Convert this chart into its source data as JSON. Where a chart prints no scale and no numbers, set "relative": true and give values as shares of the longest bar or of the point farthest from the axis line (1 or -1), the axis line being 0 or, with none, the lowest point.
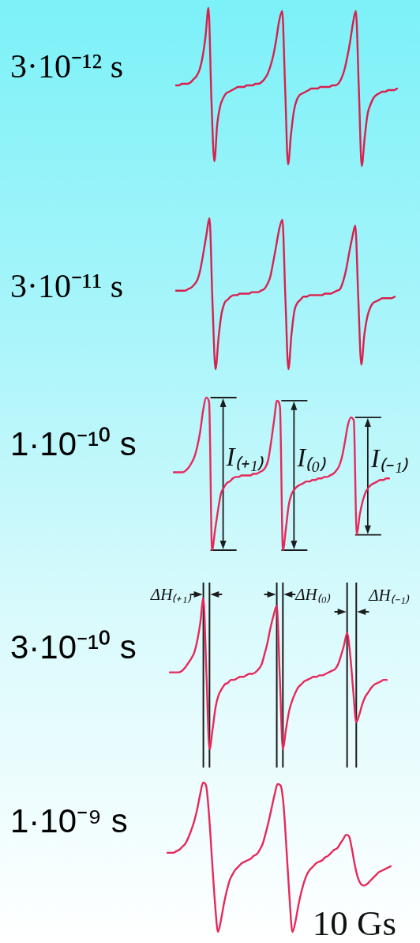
{
  "chart_data": [
    {
      "type": "line",
      "title": "3·10⁻¹² s",
      "relative": true,
      "color": "#d8204e",
      "categories": [
        null,
        null,
        null,
        null,
        null,
        null,
        null,
        null,
        null,
        null,
        null,
        null,
        null,
        null,
        null,
        null,
        null,
        null,
        null,
        null,
        null,
        null,
        null,
        null,
        null,
        null,
        null,
        null,
        null,
        null,
        null,
        null,
        null,
        null,
        null,
        null,
        null,
        null,
        null,
        null,
        null,
        null,
        null,
        null,
        null,
        null,
        null,
        null,
        null,
        null,
        null,
        null,
        null,
        null,
        null,
        null,
        null,
        null,
        null,
        null,
        null,
        null,
        null,
        null,
        null,
        null,
        null,
        null,
        null,
        null,
        null,
        null,
        null,
        null,
        null,
        null
      ],
      "values": [
        0.51,
        0.51,
        0.52,
        0.52,
        0.52,
        0.53,
        0.55,
        0.57,
        0.61,
        0.69,
        0.82,
        1,
        0.42,
        0.03,
        0.27,
        0.38,
        0.43,
        0.46,
        0.47,
        0.48,
        0.49,
        0.5,
        0.5,
        0.5,
        0.51,
        0.51,
        0.51,
        0.52,
        0.52,
        0.53,
        0.55,
        0.58,
        0.63,
        0.7,
        0.8,
        0.92,
        0.98,
        0.5,
        0.01,
        0.2,
        0.35,
        0.42,
        0.45,
        0.46,
        0.47,
        0.48,
        0.49,
        0.49,
        0.49,
        0.5,
        0.5,
        0.5,
        0.5,
        0.51,
        0.51,
        0.52,
        0.55,
        0.6,
        0.68,
        0.78,
        0.9,
        0.98,
        0.5,
        0,
        0.18,
        0.33,
        0.39,
        0.43,
        0.45,
        0.46,
        0.47,
        0.47,
        0.48,
        0.48,
        0.48,
        0.49
      ]
    },
    {
      "type": "line",
      "title": "3·10⁻¹¹ s",
      "relative": true,
      "color": "#d8204e",
      "categories": [
        null,
        null,
        null,
        null,
        null,
        null,
        null,
        null,
        null,
        null,
        null,
        null,
        null,
        null,
        null,
        null,
        null,
        null,
        null,
        null,
        null,
        null,
        null,
        null,
        null,
        null,
        null,
        null,
        null,
        null,
        null,
        null,
        null,
        null,
        null,
        null,
        null,
        null,
        null,
        null,
        null,
        null,
        null,
        null,
        null,
        null,
        null,
        null,
        null,
        null,
        null,
        null,
        null,
        null,
        null,
        null,
        null,
        null,
        null,
        null,
        null,
        null,
        null,
        null,
        null,
        null,
        null,
        null,
        null,
        null,
        null,
        null,
        null
      ],
      "values": [
        0.52,
        0.52,
        0.52,
        0.52,
        0.53,
        0.54,
        0.56,
        0.59,
        0.66,
        0.77,
        0.89,
        1,
        0.44,
        0,
        0.21,
        0.37,
        0.44,
        0.46,
        0.48,
        0.49,
        0.49,
        0.5,
        0.5,
        0.5,
        0.5,
        0.51,
        0.51,
        0.51,
        0.52,
        0.53,
        0.56,
        0.61,
        0.71,
        0.82,
        0.93,
        0.99,
        0.47,
        0,
        0.23,
        0.39,
        0.44,
        0.46,
        0.48,
        0.48,
        0.49,
        0.49,
        0.49,
        0.49,
        0.49,
        0.5,
        0.5,
        0.5,
        0.51,
        0.52,
        0.53,
        0.58,
        0.66,
        0.77,
        0.87,
        0.95,
        0.47,
        0.03,
        0.23,
        0.35,
        0.41,
        0.44,
        0.45,
        0.46,
        0.47,
        0.47,
        0.47,
        0.47,
        0.48
      ]
    },
    {
      "type": "line",
      "title": "1·10⁻¹⁰ s",
      "relative": true,
      "color": "#e6295a",
      "annotations": [
        "I₍₊₁₎",
        "I₍₀₎",
        "I₍₋₁₎"
      ],
      "categories": [
        null,
        null,
        null,
        null,
        null,
        null,
        null,
        null,
        null,
        null,
        null,
        null,
        null,
        null,
        null,
        null,
        null,
        null,
        null,
        null,
        null,
        null,
        null,
        null,
        null,
        null,
        null,
        null,
        null,
        null,
        null,
        null,
        null,
        null,
        null,
        null,
        null,
        null,
        null,
        null,
        null,
        null,
        null,
        null,
        null,
        null,
        null,
        null,
        null,
        null,
        null,
        null,
        null,
        null,
        null,
        null,
        null,
        null,
        null,
        null,
        null,
        null,
        null,
        null,
        null,
        null,
        null,
        null,
        null,
        null,
        null,
        null,
        null,
        null
      ],
      "values": [
        0.51,
        0.51,
        0.51,
        0.51,
        0.52,
        0.54,
        0.57,
        0.61,
        0.68,
        0.78,
        0.92,
        1,
        0.97,
        0,
        0.13,
        0.26,
        0.37,
        0.41,
        0.44,
        0.45,
        0.47,
        0.48,
        0.48,
        0.49,
        0.49,
        0.49,
        0.49,
        0.5,
        0.5,
        0.51,
        0.52,
        0.54,
        0.59,
        0.71,
        0.85,
        0.98,
        0.94,
        0,
        0.14,
        0.3,
        0.37,
        0.4,
        0.42,
        0.43,
        0.44,
        0.45,
        0.45,
        0.46,
        0.46,
        0.47,
        0.47,
        0.48,
        0.48,
        0.49,
        0.5,
        0.52,
        0.55,
        0.61,
        0.71,
        0.82,
        0.87,
        0.85,
        0.1,
        0.23,
        0.32,
        0.38,
        0.41,
        0.43,
        0.44,
        0.45,
        0.46,
        0.46,
        0.47,
        0.47
      ]
    },
    {
      "type": "line",
      "title": "3·10⁻¹⁰ s",
      "relative": true,
      "color": "#e6295a",
      "annotations": [
        "ΔH₍₊₁₎",
        "ΔH₍₀₎",
        "ΔH₍₋₁₎"
      ],
      "categories": [
        null,
        null,
        null,
        null,
        null,
        null,
        null,
        null,
        null,
        null,
        null,
        null,
        null,
        null,
        null,
        null,
        null,
        null,
        null,
        null,
        null,
        null,
        null,
        null,
        null,
        null,
        null,
        null,
        null,
        null,
        null,
        null,
        null,
        null,
        null,
        null,
        null,
        null,
        null,
        null,
        null,
        null,
        null,
        null,
        null,
        null,
        null,
        null,
        null,
        null,
        null,
        null,
        null,
        null,
        null,
        null,
        null,
        null,
        null,
        null,
        null,
        null,
        null,
        null,
        null,
        null,
        null,
        null,
        null,
        null,
        null,
        null
      ],
      "values": [
        0.51,
        0.51,
        0.51,
        0.51,
        0.52,
        0.54,
        0.57,
        0.6,
        0.64,
        0.72,
        0.84,
        1,
        0.5,
        0,
        0.13,
        0.28,
        0.36,
        0.4,
        0.43,
        0.44,
        0.46,
        0.46,
        0.47,
        0.48,
        0.48,
        0.49,
        0.5,
        0.5,
        0.51,
        0.53,
        0.56,
        0.63,
        0.71,
        0.81,
        0.89,
        0.95,
        0.48,
        0,
        0.13,
        0.25,
        0.32,
        0.37,
        0.41,
        0.43,
        0.45,
        0.46,
        0.47,
        0.48,
        0.48,
        0.49,
        0.49,
        0.5,
        0.51,
        0.52,
        0.53,
        0.56,
        0.62,
        0.69,
        0.77,
        0.63,
        0.39,
        0.18,
        0.23,
        0.3,
        0.35,
        0.38,
        0.41,
        0.43,
        0.44,
        0.45,
        0.46,
        0.46
      ]
    },
    {
      "type": "line",
      "title": "1·10⁻⁹ s",
      "relative": true,
      "color": "#e6295a",
      "annotations": [
        "10 Gs"
      ],
      "categories": [
        null,
        null,
        null,
        null,
        null,
        null,
        null,
        null,
        null,
        null,
        null,
        null,
        null,
        null,
        null,
        null,
        null,
        null,
        null,
        null,
        null,
        null,
        null,
        null,
        null,
        null,
        null,
        null,
        null,
        null,
        null,
        null,
        null,
        null,
        null,
        null,
        null,
        null,
        null,
        null,
        null,
        null,
        null,
        null,
        null,
        null,
        null,
        null,
        null,
        null,
        null,
        null,
        null,
        null,
        null,
        null,
        null,
        null,
        null,
        null,
        null,
        null,
        null,
        null,
        null,
        null,
        null,
        null,
        null,
        null,
        null,
        null,
        null,
        null,
        null,
        null
      ],
      "values": [
        0.53,
        0.53,
        0.53,
        0.54,
        0.55,
        0.57,
        0.59,
        0.63,
        0.68,
        0.74,
        0.82,
        0.92,
        1,
        0.98,
        0.78,
        0.48,
        0.19,
        0,
        0.08,
        0.19,
        0.28,
        0.35,
        0.39,
        0.42,
        0.44,
        0.46,
        0.47,
        0.48,
        0.49,
        0.51,
        0.52,
        0.55,
        0.59,
        0.66,
        0.74,
        0.83,
        0.92,
        0.99,
        0.98,
        0.85,
        0.55,
        0.23,
        0,
        0.07,
        0.18,
        0.27,
        0.34,
        0.39,
        0.42,
        0.44,
        0.46,
        0.47,
        0.48,
        0.5,
        0.51,
        0.53,
        0.55,
        0.56,
        0.59,
        0.62,
        0.65,
        0.64,
        0.55,
        0.44,
        0.36,
        0.32,
        0.31,
        0.32,
        0.34,
        0.36,
        0.38,
        0.4,
        0.41,
        0.42,
        0.43,
        0.44
      ]
    }
  ]
}
